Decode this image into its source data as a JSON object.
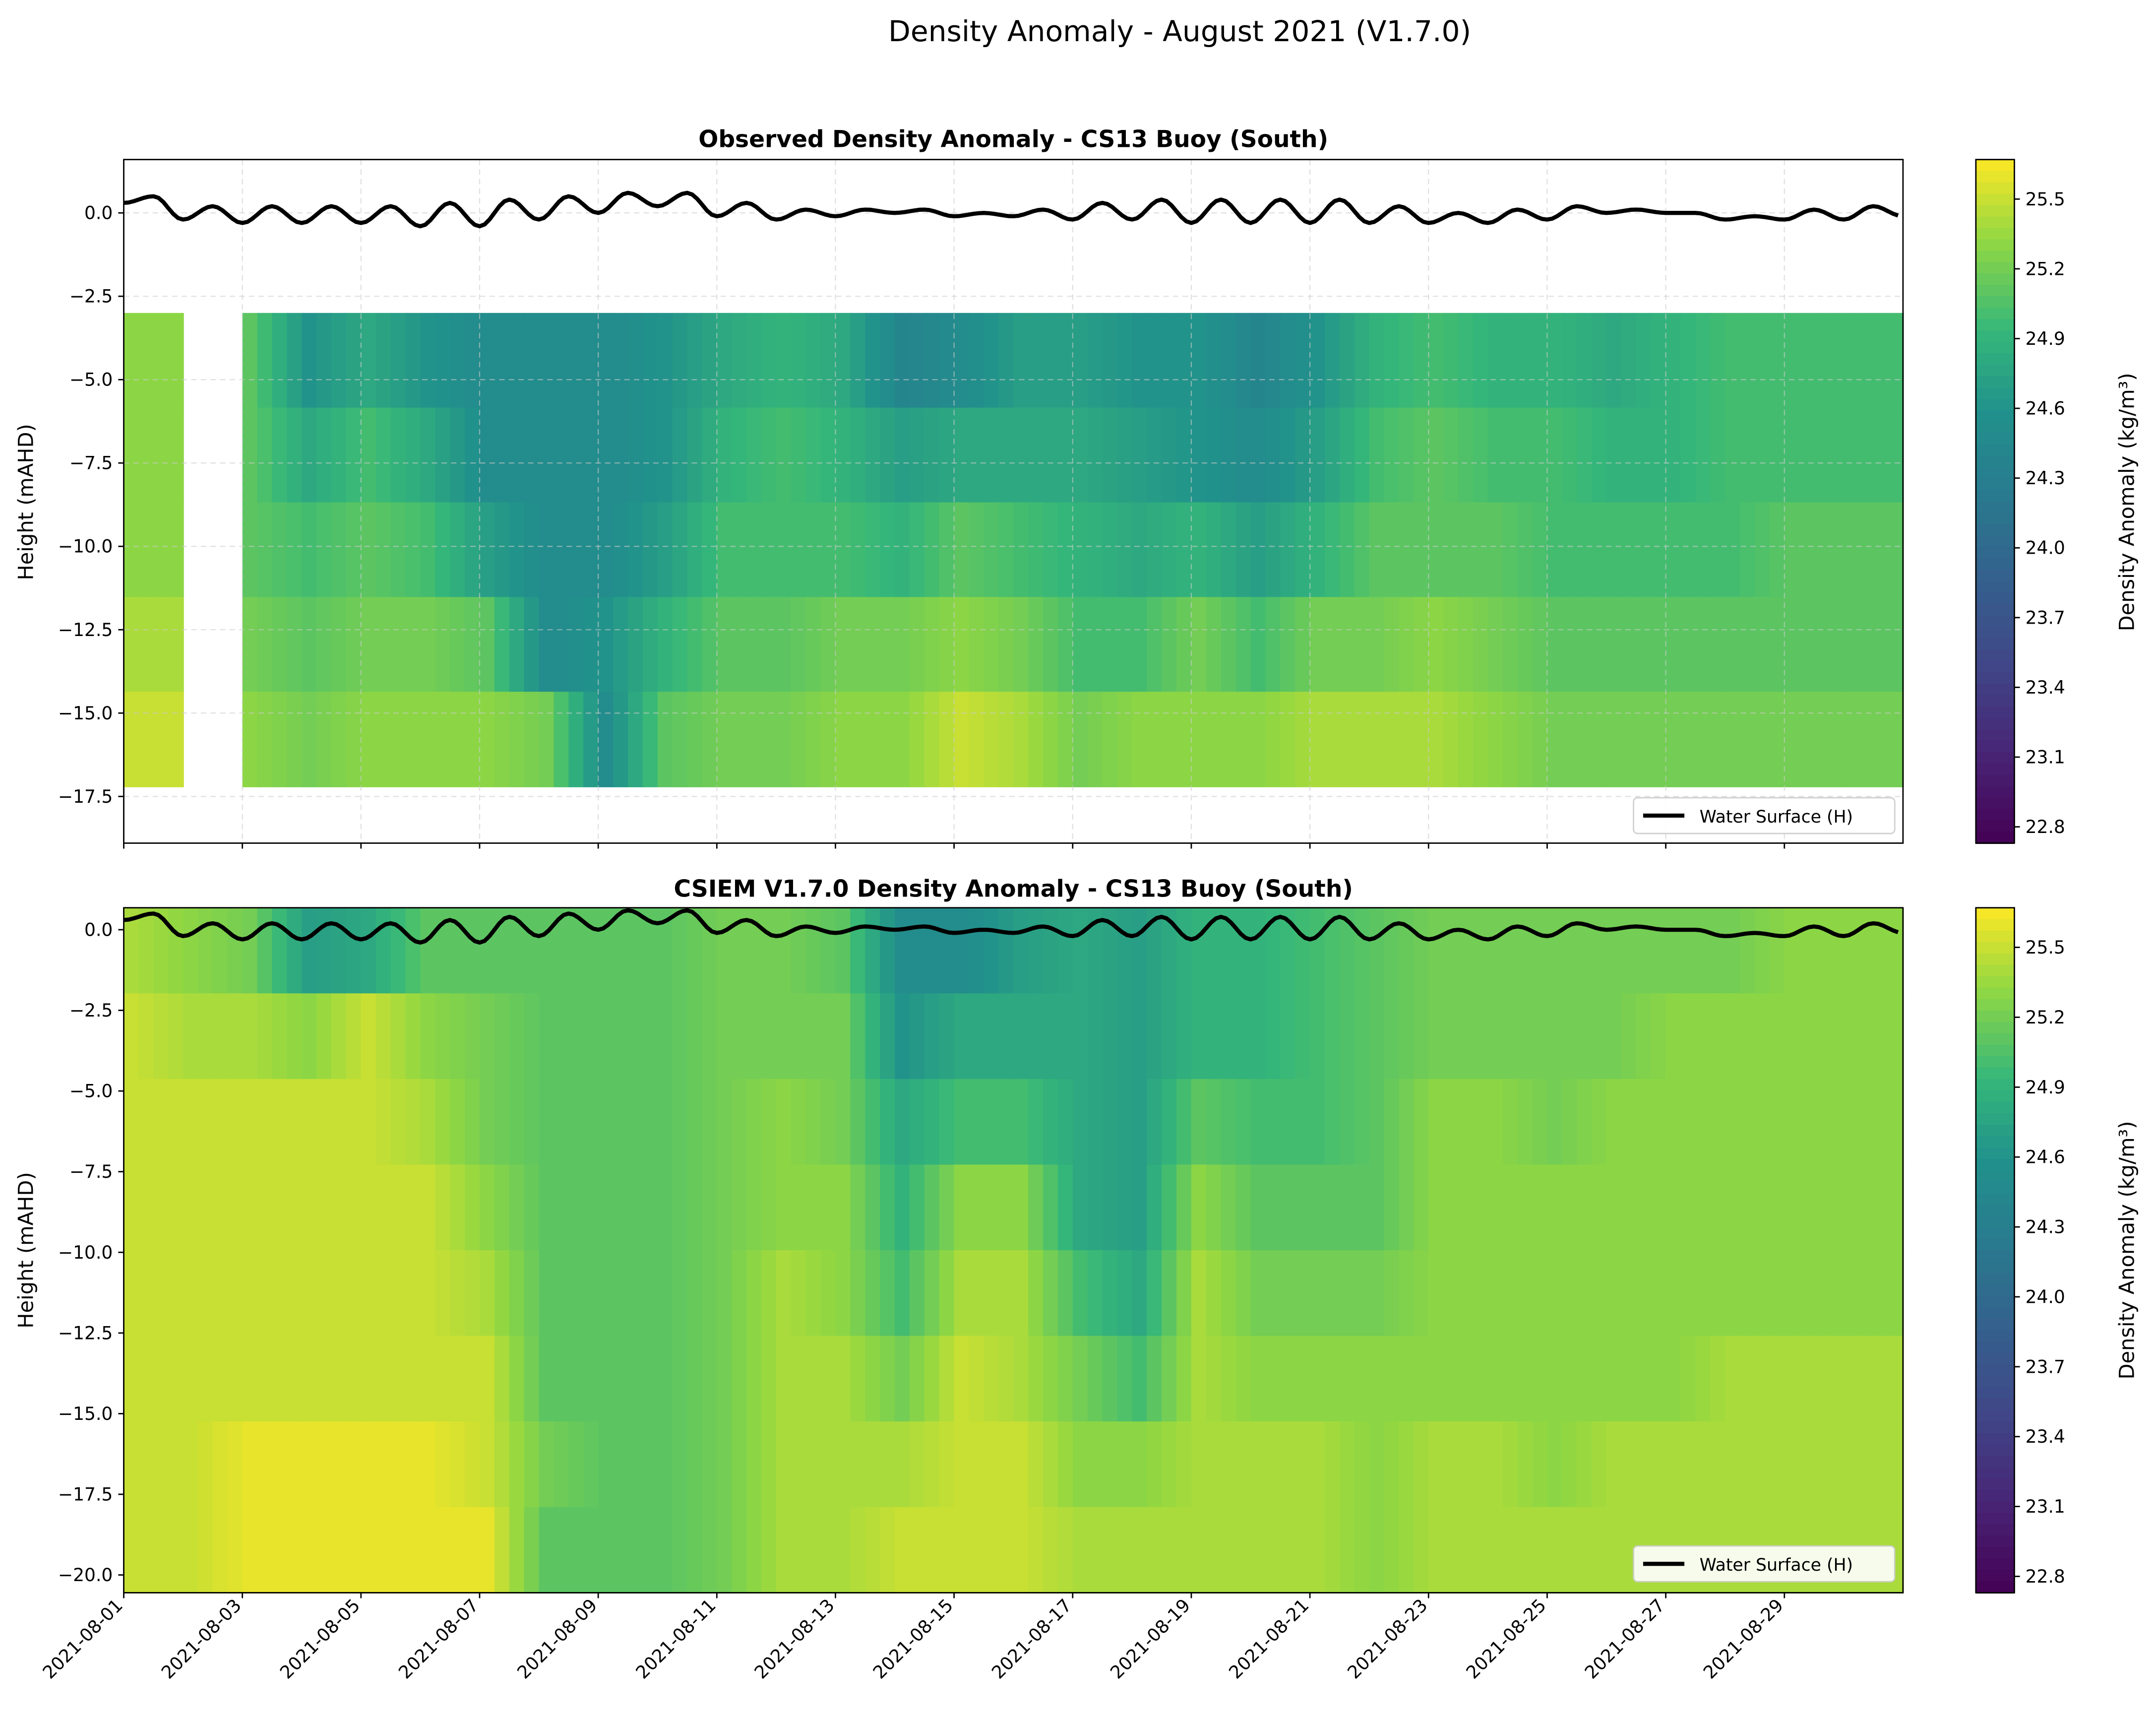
{
  "suptitle": "Density Anomaly - August 2021 (V1.7.0)",
  "colormap": "viridis",
  "colorbar": {
    "label": "Density Anomaly (kg/m³)",
    "range": [
      22.73,
      25.67
    ],
    "ticks": [
      "22.8",
      "23.1",
      "23.4",
      "23.7",
      "24.0",
      "24.3",
      "24.6",
      "24.9",
      "25.2",
      "25.5"
    ]
  },
  "x_ticks": [
    "2021-08-01",
    "2021-08-03",
    "2021-08-05",
    "2021-08-07",
    "2021-08-09",
    "2021-08-11",
    "2021-08-13",
    "2021-08-15",
    "2021-08-17",
    "2021-08-19",
    "2021-08-21",
    "2021-08-23",
    "2021-08-25",
    "2021-08-27",
    "2021-08-29"
  ],
  "xlim": [
    "2021-08-01",
    "2021-08-31"
  ],
  "water_surface": {
    "name": "Water Surface (H)",
    "color": "#000000",
    "interval_hours": 12,
    "values": [
      0.3,
      0.5,
      -0.2,
      0.2,
      -0.3,
      0.2,
      -0.3,
      0.2,
      -0.3,
      0.2,
      -0.4,
      0.3,
      -0.4,
      0.4,
      -0.2,
      0.5,
      0.0,
      0.6,
      0.2,
      0.6,
      -0.1,
      0.3,
      -0.2,
      0.1,
      -0.1,
      0.1,
      0.0,
      0.1,
      -0.1,
      0.0,
      -0.1,
      0.1,
      -0.2,
      0.3,
      -0.2,
      0.4,
      -0.3,
      0.4,
      -0.3,
      0.4,
      -0.3,
      0.4,
      -0.3,
      0.2,
      -0.3,
      0.0,
      -0.3,
      0.1,
      -0.2,
      0.2,
      0.0,
      0.1,
      0.0,
      0.0,
      -0.2,
      -0.1,
      -0.2,
      0.1,
      -0.2,
      0.2,
      -0.1
    ]
  },
  "chart_data": [
    {
      "type": "heatmap",
      "title": "Observed Density Anomaly - CS13 Buoy (South)",
      "ylabel": "Height (mAHD)",
      "ylim": [
        -18.9,
        1.6
      ],
      "y_ticks": [
        "0.0",
        "−2.5",
        "−5.0",
        "−7.5",
        "−10.0",
        "−12.5",
        "−15.0",
        "−17.5"
      ],
      "y_tick_values": [
        0,
        -2.5,
        -5,
        -7.5,
        -10,
        -12.5,
        -15,
        -17.5
      ],
      "grid": true,
      "legend": "lower-right",
      "depth_range": [
        -3.0,
        -17.2
      ],
      "depths": [
        -4,
        -7,
        -10,
        -13,
        -16
      ],
      "days": [
        "08-01",
        "08-02",
        "08-03",
        "08-04",
        "08-05",
        "08-06",
        "08-07",
        "08-08",
        "08-09",
        "08-10",
        "08-11",
        "08-12",
        "08-13",
        "08-14",
        "08-15",
        "08-16",
        "08-17",
        "08-18",
        "08-19",
        "08-20",
        "08-21",
        "08-22",
        "08-23",
        "08-24",
        "08-25",
        "08-26",
        "08-27",
        "08-28",
        "08-29",
        "08-30"
      ],
      "values": [
        [
          25.3,
          25.3,
          25.3,
          25.4,
          25.5
        ],
        null,
        [
          25.1,
          25.1,
          25.1,
          25.2,
          25.3
        ],
        [
          24.6,
          24.8,
          25.0,
          25.1,
          25.2
        ],
        [
          24.8,
          25.0,
          25.1,
          25.2,
          25.3
        ],
        [
          24.6,
          24.8,
          25.0,
          25.2,
          25.3
        ],
        [
          24.5,
          24.5,
          24.7,
          25.1,
          25.3
        ],
        [
          24.5,
          24.5,
          24.5,
          24.5,
          25.2
        ],
        [
          24.5,
          24.5,
          24.5,
          24.6,
          24.5
        ],
        [
          24.6,
          24.6,
          24.7,
          24.9,
          25.1
        ],
        [
          24.8,
          24.9,
          25.0,
          25.1,
          25.2
        ],
        [
          24.9,
          25.0,
          25.0,
          25.1,
          25.2
        ],
        [
          24.8,
          24.9,
          25.0,
          25.2,
          25.3
        ],
        [
          24.4,
          24.7,
          24.9,
          25.2,
          25.3
        ],
        [
          24.5,
          24.8,
          25.1,
          25.3,
          25.5
        ],
        [
          24.7,
          24.8,
          25.0,
          25.2,
          25.4
        ],
        [
          24.7,
          24.8,
          24.9,
          25.0,
          25.2
        ],
        [
          24.6,
          24.7,
          24.8,
          25.0,
          25.3
        ],
        [
          24.6,
          24.6,
          24.9,
          25.2,
          25.3
        ],
        [
          24.4,
          24.5,
          24.7,
          25.0,
          25.3
        ],
        [
          24.6,
          24.7,
          24.9,
          25.2,
          25.4
        ],
        [
          24.9,
          25.0,
          25.1,
          25.2,
          25.4
        ],
        [
          25.0,
          25.1,
          25.1,
          25.3,
          25.4
        ],
        [
          24.9,
          25.0,
          25.1,
          25.2,
          25.3
        ],
        [
          24.9,
          25.0,
          25.0,
          25.1,
          25.2
        ],
        [
          24.8,
          24.9,
          25.0,
          25.1,
          25.2
        ],
        [
          24.9,
          24.9,
          25.0,
          25.1,
          25.2
        ],
        [
          25.0,
          25.0,
          25.0,
          25.1,
          25.2
        ],
        [
          25.0,
          25.0,
          25.1,
          25.1,
          25.2
        ],
        [
          25.0,
          25.0,
          25.1,
          25.1,
          25.2
        ]
      ]
    },
    {
      "type": "heatmap",
      "title": "CSIEM V1.7.0 Density Anomaly - CS13 Buoy (South)",
      "ylabel": "Height (mAHD)",
      "ylim": [
        -20.55,
        0.68
      ],
      "y_ticks": [
        "0.0",
        "−2.5",
        "−5.0",
        "−7.5",
        "−10.0",
        "−12.5",
        "−15.0",
        "−17.5",
        "−20.0"
      ],
      "y_tick_values": [
        0,
        -2.5,
        -5,
        -7.5,
        -10,
        -12.5,
        -15,
        -17.5,
        -20
      ],
      "grid": false,
      "legend": "lower-right",
      "depth_range": [
        0.68,
        -20.55
      ],
      "depths": [
        -1.25,
        -3.75,
        -6.25,
        -8.75,
        -11.25,
        -13.75,
        -16.25,
        -18.75
      ],
      "days": [
        "08-01",
        "08-02",
        "08-03",
        "08-04",
        "08-05",
        "08-06",
        "08-07",
        "08-08",
        "08-09",
        "08-10",
        "08-11",
        "08-12",
        "08-13",
        "08-14",
        "08-15",
        "08-16",
        "08-17",
        "08-18",
        "08-19",
        "08-20",
        "08-21",
        "08-22",
        "08-23",
        "08-24",
        "08-25",
        "08-26",
        "08-27",
        "08-28",
        "08-29",
        "08-30"
      ],
      "values": [
        [
          25.4,
          25.5,
          25.5,
          25.5,
          25.5,
          25.5,
          25.5,
          25.5
        ],
        [
          25.3,
          25.4,
          25.5,
          25.5,
          25.5,
          25.5,
          25.5,
          25.5
        ],
        [
          25.2,
          25.4,
          25.5,
          25.5,
          25.5,
          25.5,
          25.6,
          25.6
        ],
        [
          24.7,
          25.3,
          25.5,
          25.5,
          25.5,
          25.5,
          25.6,
          25.6
        ],
        [
          24.8,
          25.5,
          25.5,
          25.5,
          25.5,
          25.5,
          25.6,
          25.6
        ],
        [
          25.1,
          25.3,
          25.4,
          25.5,
          25.5,
          25.5,
          25.6,
          25.6
        ],
        [
          25.1,
          25.2,
          25.2,
          25.3,
          25.4,
          25.5,
          25.5,
          25.6
        ],
        [
          25.1,
          25.1,
          25.1,
          25.1,
          25.1,
          25.1,
          25.2,
          25.1
        ],
        [
          25.1,
          25.1,
          25.1,
          25.1,
          25.1,
          25.1,
          25.1,
          25.1
        ],
        [
          25.1,
          25.1,
          25.1,
          25.1,
          25.1,
          25.1,
          25.1,
          25.1
        ],
        [
          25.2,
          25.2,
          25.2,
          25.2,
          25.2,
          25.2,
          25.2,
          25.2
        ],
        [
          25.2,
          25.2,
          25.3,
          25.3,
          25.4,
          25.4,
          25.4,
          25.4
        ],
        [
          25.1,
          25.2,
          25.2,
          25.3,
          25.3,
          25.4,
          25.4,
          25.4
        ],
        [
          24.5,
          24.6,
          24.8,
          24.9,
          25.0,
          25.2,
          25.4,
          25.5
        ],
        [
          24.5,
          24.8,
          25.0,
          25.3,
          25.4,
          25.5,
          25.5,
          25.5
        ],
        [
          24.7,
          24.8,
          25.0,
          25.3,
          25.4,
          25.4,
          25.5,
          25.5
        ],
        [
          24.8,
          24.8,
          24.8,
          24.8,
          25.0,
          25.2,
          25.3,
          25.4
        ],
        [
          24.7,
          24.7,
          24.7,
          24.7,
          24.8,
          25.0,
          25.3,
          25.4
        ],
        [
          24.9,
          24.9,
          25.1,
          25.3,
          25.4,
          25.4,
          25.4,
          25.4
        ],
        [
          24.9,
          24.9,
          25.0,
          25.1,
          25.2,
          25.3,
          25.4,
          25.4
        ],
        [
          25.0,
          25.0,
          25.0,
          25.1,
          25.2,
          25.3,
          25.4,
          25.4
        ],
        [
          25.1,
          25.1,
          25.1,
          25.1,
          25.2,
          25.3,
          25.3,
          25.3
        ],
        [
          25.2,
          25.2,
          25.3,
          25.3,
          25.3,
          25.3,
          25.4,
          25.4
        ],
        [
          25.2,
          25.2,
          25.3,
          25.3,
          25.3,
          25.3,
          25.4,
          25.4
        ],
        [
          25.2,
          25.2,
          25.2,
          25.3,
          25.3,
          25.3,
          25.3,
          25.4
        ],
        [
          25.2,
          25.2,
          25.3,
          25.3,
          25.3,
          25.3,
          25.4,
          25.4
        ],
        [
          25.2,
          25.3,
          25.3,
          25.3,
          25.3,
          25.3,
          25.4,
          25.4
        ],
        [
          25.2,
          25.3,
          25.3,
          25.3,
          25.3,
          25.4,
          25.4,
          25.4
        ],
        [
          25.3,
          25.3,
          25.3,
          25.3,
          25.3,
          25.4,
          25.4,
          25.4
        ],
        [
          25.3,
          25.3,
          25.3,
          25.3,
          25.3,
          25.4,
          25.4,
          25.4
        ]
      ]
    }
  ]
}
